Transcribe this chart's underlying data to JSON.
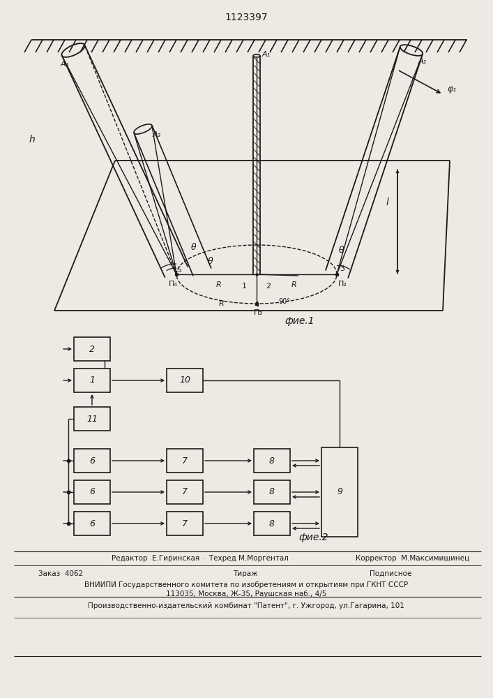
{
  "title": "1123397",
  "fig1_label": "фие.1",
  "fig2_label": "фие.2",
  "footer_editor": "Редактор  Е.Гиринская",
  "footer_tech": "·  Техред М.Моргентал",
  "footer_corr": "Корректор  М.Максимишинец",
  "footer_order": "Заказ  4062",
  "footer_print": "Тираж",
  "footer_sub": "Подписное",
  "footer_vniip": "ВНИИПИ Государственного комитета по изобретениям и открытиям при ГКНТ СССР",
  "footer_addr": "113035, Москва, Ж-35, Раушская наб., 4/5",
  "footer_plant": "Производственно-издательский комбинат \"Патент\", г. Ужгород, ул.Гагарина, 101",
  "bg_color": "#ede9e3"
}
